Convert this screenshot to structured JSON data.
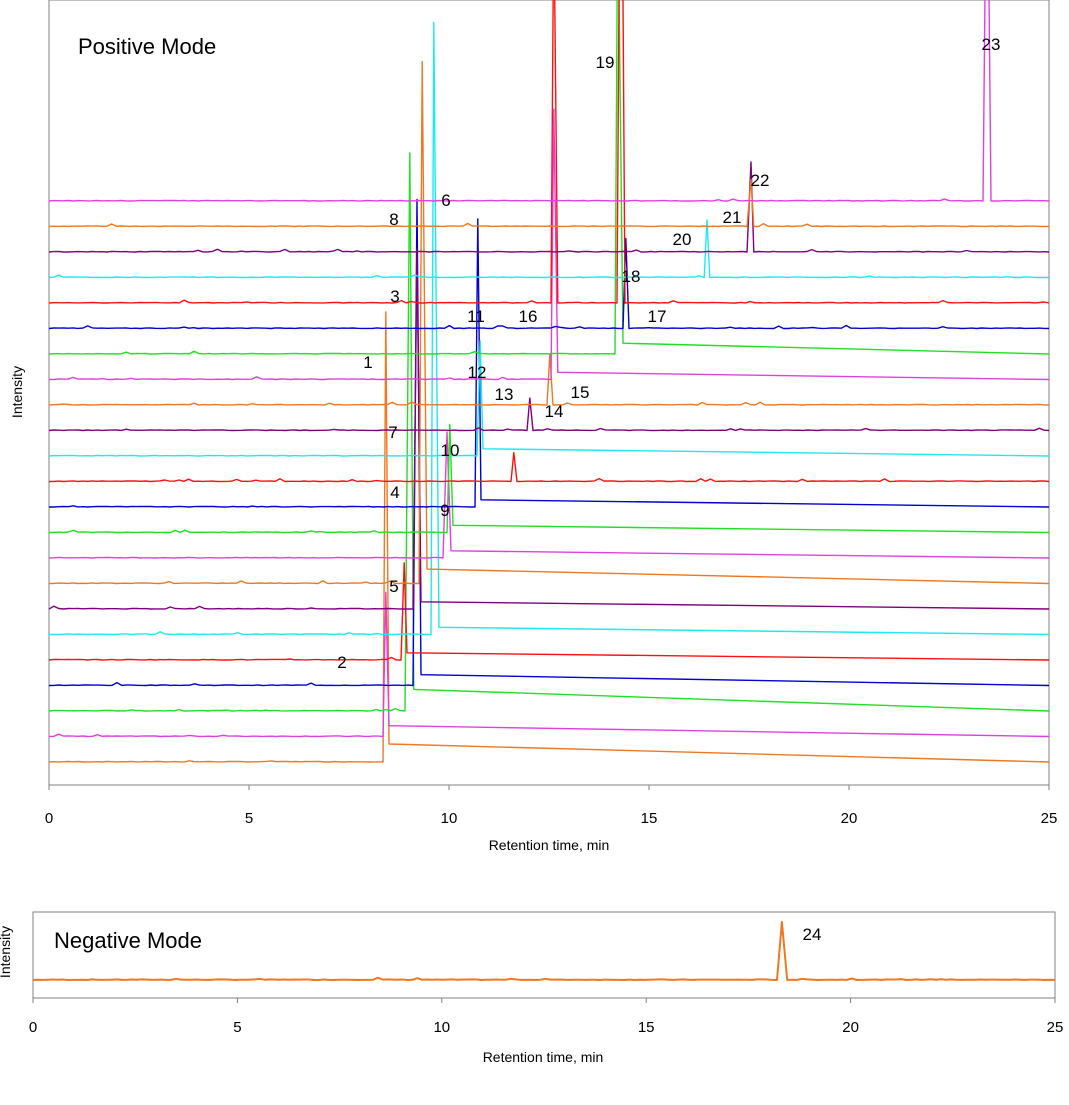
{
  "chart_data": [
    {
      "type": "line",
      "panel_title": "Positive Mode",
      "xlabel": "Retention time, min",
      "ylabel": "Intensity",
      "xlim": [
        0,
        25
      ],
      "xticks": [
        0,
        5,
        10,
        15,
        20,
        25
      ],
      "grid": false,
      "legend": "none",
      "trace_colors": [
        "#f07820",
        "#e040e0",
        "#20e020",
        "#0000d0",
        "#ff1010",
        "#20e8f0",
        "#800080",
        "#f07820",
        "#e040e0",
        "#20e020",
        "#0000d0",
        "#ff1010",
        "#20e8f0",
        "#800080",
        "#f07820",
        "#e040e0",
        "#20e020",
        "#0000d0",
        "#ff1010",
        "#20e8f0",
        "#800080",
        "#f07820",
        "#e040e0"
      ],
      "series": [
        {
          "values": [
            [
              0,
              0
            ],
            [
              8.35,
              0
            ],
            [
              8.42,
              12.5
            ],
            [
              8.5,
              0.5
            ],
            [
              25,
              0
            ]
          ]
        },
        {
          "values": [
            [
              0,
              0
            ],
            [
              8.35,
              0
            ],
            [
              8.42,
              4.0
            ],
            [
              8.5,
              0.3
            ],
            [
              25,
              0
            ]
          ]
        },
        {
          "values": [
            [
              0,
              0
            ],
            [
              8.9,
              0
            ],
            [
              9.02,
              15.5
            ],
            [
              9.12,
              0.6
            ],
            [
              25,
              0
            ]
          ]
        },
        {
          "values": [
            [
              0,
              0
            ],
            [
              9.1,
              0
            ],
            [
              9.2,
              13.5
            ],
            [
              9.3,
              0.3
            ],
            [
              25,
              0
            ]
          ]
        },
        {
          "values": [
            [
              0,
              0
            ],
            [
              8.8,
              0
            ],
            [
              8.88,
              2.7
            ],
            [
              8.95,
              0.2
            ],
            [
              25,
              0
            ]
          ]
        },
        {
          "values": [
            [
              0,
              0
            ],
            [
              9.55,
              0
            ],
            [
              9.62,
              17.0
            ],
            [
              9.75,
              0.2
            ],
            [
              25,
              0
            ]
          ]
        },
        {
          "values": [
            [
              0,
              0
            ],
            [
              9.1,
              0
            ],
            [
              9.2,
              10.0
            ],
            [
              9.3,
              0.2
            ],
            [
              25,
              0
            ]
          ]
        },
        {
          "values": [
            [
              0,
              0
            ],
            [
              9.25,
              0
            ],
            [
              9.33,
              14.5
            ],
            [
              9.45,
              0.4
            ],
            [
              25,
              0
            ]
          ]
        },
        {
          "values": [
            [
              0,
              0
            ],
            [
              9.85,
              0
            ],
            [
              9.95,
              3.5
            ],
            [
              10.05,
              0.2
            ],
            [
              25,
              0
            ]
          ]
        },
        {
          "values": [
            [
              0,
              0
            ],
            [
              9.95,
              0
            ],
            [
              10.02,
              3.0
            ],
            [
              10.1,
              0.2
            ],
            [
              25,
              0
            ]
          ]
        },
        {
          "values": [
            [
              0,
              0
            ],
            [
              10.65,
              0
            ],
            [
              10.72,
              8.0
            ],
            [
              10.8,
              0.2
            ],
            [
              25,
              0
            ]
          ]
        },
        {
          "values": [
            [
              0,
              0
            ],
            [
              11.55,
              0
            ],
            [
              11.62,
              0.8
            ],
            [
              11.7,
              0
            ],
            [
              25,
              0
            ]
          ]
        },
        {
          "values": [
            [
              0,
              0
            ],
            [
              10.7,
              0
            ],
            [
              10.78,
              3.2
            ],
            [
              10.85,
              0.2
            ],
            [
              25,
              0
            ]
          ]
        },
        {
          "values": [
            [
              0,
              0
            ],
            [
              11.95,
              0
            ],
            [
              12.02,
              0.9
            ],
            [
              12.1,
              0
            ],
            [
              25,
              0
            ]
          ]
        },
        {
          "values": [
            [
              0,
              0
            ],
            [
              12.45,
              0
            ],
            [
              12.52,
              1.4
            ],
            [
              12.6,
              0
            ],
            [
              25,
              0
            ]
          ]
        },
        {
          "values": [
            [
              0,
              0
            ],
            [
              12.55,
              0
            ],
            [
              12.62,
              7.5
            ],
            [
              12.72,
              0.2
            ],
            [
              25,
              0
            ]
          ]
        },
        {
          "values": [
            [
              0,
              0
            ],
            [
              14.15,
              0
            ],
            [
              14.22,
              13.0
            ],
            [
              14.35,
              0.3
            ],
            [
              25,
              0
            ]
          ]
        },
        {
          "values": [
            [
              0,
              0
            ],
            [
              14.35,
              0
            ],
            [
              14.42,
              2.5
            ],
            [
              14.5,
              0
            ],
            [
              25,
              0
            ]
          ]
        },
        {
          "values": [
            [
              0,
              0
            ],
            [
              12.55,
              0
            ],
            [
              12.62,
              11.0
            ],
            [
              12.72,
              0
            ],
            [
              14.2,
              0
            ],
            [
              14.3,
              17.0
            ],
            [
              14.4,
              0
            ],
            [
              25,
              0
            ]
          ]
        },
        {
          "values": [
            [
              0,
              0
            ],
            [
              16.38,
              0
            ],
            [
              16.45,
              1.6
            ],
            [
              16.52,
              0
            ],
            [
              25,
              0
            ]
          ]
        },
        {
          "values": [
            [
              0,
              0
            ],
            [
              17.45,
              0
            ],
            [
              17.55,
              2.5
            ],
            [
              17.62,
              0
            ],
            [
              25,
              0
            ]
          ]
        },
        {
          "values": [
            [
              0,
              0
            ],
            [
              17.45,
              0
            ],
            [
              17.55,
              1.3
            ],
            [
              17.62,
              0
            ],
            [
              25,
              0
            ]
          ]
        },
        {
          "values": [
            [
              0,
              0
            ],
            [
              23.35,
              0
            ],
            [
              23.45,
              11.5
            ],
            [
              23.55,
              0
            ],
            [
              25,
              0
            ]
          ]
        }
      ],
      "annotations": [
        {
          "text": "1",
          "x": 8.0,
          "y": 11.5
        },
        {
          "text": "2",
          "x": 7.3,
          "y": 2.4
        },
        {
          "text": "3",
          "x": 8.6,
          "y": 18.5
        },
        {
          "text": "4",
          "x": 8.7,
          "y": 10.6
        },
        {
          "text": "5",
          "x": 8.6,
          "y": 6.8
        },
        {
          "text": "6",
          "x": 9.9,
          "y": 22.6
        },
        {
          "text": "7",
          "x": 8.6,
          "y": 13.0
        },
        {
          "text": "8",
          "x": 8.6,
          "y": 21.6
        },
        {
          "text": "9",
          "x": 9.9,
          "y": 7.2
        },
        {
          "text": "10",
          "x": 10.0,
          "y": 8.7
        },
        {
          "text": "11",
          "x": 10.7,
          "y": 14.9
        },
        {
          "text": "12",
          "x": 10.7,
          "y": 12.1
        },
        {
          "text": "13",
          "x": 11.3,
          "y": 10.8
        },
        {
          "text": "14",
          "x": 12.6,
          "y": 7.1
        },
        {
          "text": "15",
          "x": 13.1,
          "y": 6.8
        },
        {
          "text": "16",
          "x": 12.0,
          "y": 10.7
        },
        {
          "text": "17",
          "x": 15.2,
          "y": 8.9
        },
        {
          "text": "18",
          "x": 14.5,
          "y": 5.7
        },
        {
          "text": "19",
          "x": 13.9,
          "y": 12.2
        },
        {
          "text": "20",
          "x": 15.8,
          "y": 1.3
        },
        {
          "text": "21",
          "x": 17.2,
          "y": 1.6
        },
        {
          "text": "22",
          "x": 17.8,
          "y": 2.9
        },
        {
          "text": "23",
          "x": 23.5,
          "y": 13.9
        }
      ]
    },
    {
      "type": "line",
      "panel_title": "Negative Mode",
      "xlabel": "Retention time, min",
      "ylabel": "Intensity",
      "xlim": [
        0,
        25
      ],
      "xticks": [
        0,
        5,
        10,
        15,
        20,
        25
      ],
      "grid": false,
      "legend": "none",
      "trace_colors": [
        "#f07820"
      ],
      "series": [
        {
          "values": [
            [
              0,
              0
            ],
            [
              18.2,
              0
            ],
            [
              18.32,
              40
            ],
            [
              18.45,
              0
            ],
            [
              25,
              0
            ]
          ]
        }
      ],
      "annotations": [
        {
          "text": "24",
          "x": 18.8,
          "y": 36
        }
      ]
    }
  ]
}
